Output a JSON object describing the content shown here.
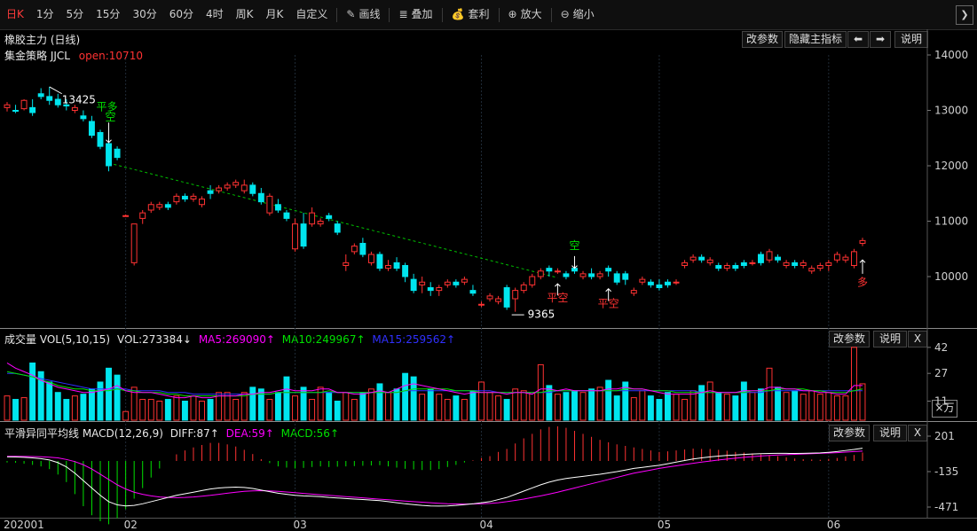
{
  "toolbar": {
    "periods": [
      "日K",
      "1分",
      "5分",
      "15分",
      "30分",
      "60分",
      "4时",
      "周K",
      "月K",
      "自定义"
    ],
    "active_period": "日K",
    "tools": [
      {
        "icon": "pencil-icon",
        "glyph": "✎",
        "label": "画线"
      },
      {
        "icon": "stack-icon",
        "glyph": "≣",
        "label": "叠加"
      },
      {
        "icon": "money-bag-icon",
        "glyph": "💰",
        "label": "套利"
      },
      {
        "icon": "zoom-in-icon",
        "glyph": "⊕",
        "label": "放大"
      },
      {
        "icon": "zoom-out-icon",
        "glyph": "⊖",
        "label": "缩小"
      }
    ],
    "collapse_glyph": "❯"
  },
  "main": {
    "title": "橡胶主力 (日线)",
    "strategy": "集金策略 JJCL",
    "open_label": "open:10710",
    "buttons": {
      "params": "改参数",
      "hide": "隐藏主指标",
      "left": "⬅",
      "right": "➡",
      "help": "说明"
    },
    "annotations": {
      "high": "13425",
      "low": "9365",
      "sig1": "平多",
      "sig2": "空",
      "sig3": "空",
      "sig4": "平空",
      "sig5": "平空",
      "sig6": "多"
    }
  },
  "volume": {
    "title": "成交量 VOL(5,10,15)",
    "vol": "VOL:273384↓",
    "ma5": "MA5:269090↑",
    "ma10": "MA10:249967↑",
    "ma15": "MA15:259562↑",
    "buttons": {
      "params": "改参数",
      "help": "说明",
      "close": "X"
    },
    "unit": "×万",
    "ticks": [
      "42",
      "27",
      "11"
    ]
  },
  "macd": {
    "title": "平滑异同平均线 MACD(12,26,9)",
    "diff": "DIFF:87↑",
    "dea": "DEA:59↑",
    "macd": "MACD:56↑",
    "buttons": {
      "params": "改参数",
      "help": "说明",
      "close": "X"
    },
    "ticks": [
      "201",
      "-135",
      "-471"
    ]
  },
  "x_axis": [
    "202001",
    "02",
    "03",
    "04",
    "05",
    "06"
  ],
  "colors": {
    "up": "#ff3232",
    "down": "#00e5ee",
    "ma5": "#ff00ff",
    "ma10": "#00e000",
    "ma15": "#3030ff",
    "diff": "#ffffff",
    "dea": "#ff00ff",
    "trend": "#00c000"
  },
  "chart_data": {
    "type": "candlestick",
    "ylim": [
      9200,
      14000
    ],
    "y_ticks": [
      14000,
      13000,
      12000,
      11000,
      10000
    ],
    "ohlc": [
      [
        13050,
        13150,
        12980,
        13100
      ],
      [
        13000,
        13100,
        12950,
        12990
      ],
      [
        13030,
        13200,
        13000,
        13180
      ],
      [
        13050,
        13200,
        12900,
        12960
      ],
      [
        13300,
        13400,
        13200,
        13250
      ],
      [
        13250,
        13425,
        13100,
        13180
      ],
      [
        13200,
        13300,
        13050,
        13100
      ],
      [
        13100,
        13200,
        13000,
        13080
      ],
      [
        13000,
        13100,
        12950,
        13050
      ],
      [
        12900,
        13000,
        12800,
        12850
      ],
      [
        12800,
        12900,
        12500,
        12550
      ],
      [
        12600,
        12650,
        12300,
        12350
      ],
      [
        12400,
        12500,
        11900,
        12000
      ],
      [
        12300,
        12350,
        12100,
        12150
      ],
      [
        11100,
        11120,
        11080,
        11100
      ],
      [
        10250,
        10950,
        10200,
        10950
      ],
      [
        11050,
        11200,
        10950,
        11150
      ],
      [
        11200,
        11350,
        11150,
        11300
      ],
      [
        11250,
        11350,
        11200,
        11300
      ],
      [
        11300,
        11350,
        11200,
        11250
      ],
      [
        11350,
        11500,
        11300,
        11450
      ],
      [
        11450,
        11500,
        11350,
        11400
      ],
      [
        11400,
        11500,
        11350,
        11450
      ],
      [
        11300,
        11450,
        11250,
        11400
      ],
      [
        11550,
        11650,
        11400,
        11500
      ],
      [
        11550,
        11650,
        11500,
        11600
      ],
      [
        11600,
        11700,
        11550,
        11650
      ],
      [
        11650,
        11750,
        11600,
        11700
      ],
      [
        11550,
        11750,
        11500,
        11650
      ],
      [
        11650,
        11700,
        11450,
        11500
      ],
      [
        11500,
        11600,
        11300,
        11350
      ],
      [
        11150,
        11500,
        11100,
        11450
      ],
      [
        11300,
        11400,
        11150,
        11200
      ],
      [
        11150,
        11200,
        11000,
        11050
      ],
      [
        10500,
        11050,
        10450,
        10950
      ],
      [
        10950,
        11150,
        10500,
        10550
      ],
      [
        10950,
        11250,
        10900,
        11150
      ],
      [
        10950,
        11050,
        10900,
        11000
      ],
      [
        11100,
        11150,
        11000,
        11050
      ],
      [
        10950,
        11000,
        10750,
        10800
      ],
      [
        10200,
        10400,
        10100,
        10250
      ],
      [
        10450,
        10600,
        10400,
        10550
      ],
      [
        10600,
        10700,
        10350,
        10400
      ],
      [
        10250,
        10450,
        10200,
        10400
      ],
      [
        10400,
        10450,
        10100,
        10150
      ],
      [
        10150,
        10300,
        10100,
        10200
      ],
      [
        10250,
        10350,
        10100,
        10150
      ],
      [
        10200,
        10250,
        9900,
        10000
      ],
      [
        9950,
        10050,
        9700,
        9750
      ],
      [
        9850,
        10000,
        9700,
        9900
      ],
      [
        9800,
        9900,
        9650,
        9750
      ],
      [
        9750,
        9850,
        9650,
        9800
      ],
      [
        9850,
        9950,
        9800,
        9900
      ],
      [
        9900,
        9950,
        9800,
        9850
      ],
      [
        9900,
        10000,
        9850,
        9950
      ],
      [
        9750,
        9850,
        9650,
        9700
      ],
      [
        9500,
        9550,
        9450,
        9500
      ],
      [
        9600,
        9700,
        9550,
        9650
      ],
      [
        9550,
        9650,
        9500,
        9600
      ],
      [
        9800,
        9850,
        9400,
        9450
      ],
      [
        9600,
        9800,
        9365,
        9750
      ],
      [
        9750,
        9900,
        9700,
        9850
      ],
      [
        9850,
        10050,
        9800,
        10000
      ],
      [
        10000,
        10150,
        9950,
        10100
      ],
      [
        10150,
        10200,
        10000,
        10100
      ],
      [
        10100,
        10150,
        10050,
        10100
      ],
      [
        10050,
        10100,
        9950,
        10000
      ],
      [
        10150,
        10200,
        10050,
        10100
      ],
      [
        10000,
        10100,
        9950,
        10050
      ],
      [
        10050,
        10150,
        9950,
        10000
      ],
      [
        10000,
        10100,
        9950,
        10050
      ],
      [
        10150,
        10200,
        10000,
        10100
      ],
      [
        10050,
        10100,
        9850,
        9900
      ],
      [
        10050,
        10100,
        9850,
        9950
      ],
      [
        9700,
        9800,
        9650,
        9750
      ],
      [
        9900,
        10000,
        9850,
        9950
      ],
      [
        9900,
        9950,
        9800,
        9850
      ],
      [
        9850,
        9950,
        9750,
        9800
      ],
      [
        9900,
        9950,
        9800,
        9850
      ],
      [
        9900,
        9950,
        9850,
        9900
      ],
      [
        10200,
        10300,
        10150,
        10250
      ],
      [
        10300,
        10400,
        10250,
        10350
      ],
      [
        10350,
        10400,
        10250,
        10300
      ],
      [
        10250,
        10350,
        10200,
        10300
      ],
      [
        10200,
        10250,
        10100,
        10150
      ],
      [
        10150,
        10250,
        10100,
        10200
      ],
      [
        10200,
        10250,
        10100,
        10150
      ],
      [
        10250,
        10300,
        10150,
        10200
      ],
      [
        10250,
        10300,
        10200,
        10250
      ],
      [
        10400,
        10450,
        10200,
        10250
      ],
      [
        10300,
        10500,
        10250,
        10450
      ],
      [
        10350,
        10400,
        10250,
        10300
      ],
      [
        10200,
        10300,
        10150,
        10250
      ],
      [
        10250,
        10300,
        10150,
        10200
      ],
      [
        10200,
        10300,
        10150,
        10250
      ],
      [
        10100,
        10200,
        10050,
        10150
      ],
      [
        10150,
        10250,
        10100,
        10200
      ],
      [
        10200,
        10300,
        10100,
        10250
      ],
      [
        10300,
        10450,
        10250,
        10400
      ],
      [
        10300,
        10400,
        10250,
        10350
      ],
      [
        10200,
        10500,
        10150,
        10450
      ],
      [
        10600,
        10700,
        10550,
        10650
      ]
    ],
    "volume": [
      14,
      12,
      13,
      33,
      28,
      22,
      16,
      12,
      14,
      15,
      18,
      22,
      30,
      26,
      5,
      19,
      12,
      12,
      11,
      12,
      14,
      11,
      14,
      11,
      12,
      16,
      16,
      12,
      16,
      19,
      18,
      12,
      16,
      25,
      14,
      19,
      12,
      19,
      16,
      11,
      16,
      12,
      16,
      18,
      21,
      16,
      18,
      27,
      25,
      15,
      18,
      15,
      12,
      14,
      12,
      17,
      22,
      16,
      14,
      12,
      18,
      17,
      16,
      32,
      20,
      15,
      16,
      17,
      16,
      18,
      19,
      23,
      14,
      22,
      13,
      17,
      14,
      12,
      16,
      15,
      12,
      17,
      20,
      22,
      16,
      15,
      14,
      22,
      16,
      18,
      30,
      19,
      16,
      17,
      15,
      17,
      15,
      16,
      14,
      14,
      42,
      21
    ],
    "ma5": [
      33,
      30,
      28,
      26,
      23,
      21,
      19,
      18,
      17,
      16,
      16,
      17,
      18,
      20,
      17,
      16,
      16,
      16,
      15,
      14,
      13,
      13,
      14,
      13,
      13,
      14,
      14,
      14,
      15,
      15,
      16,
      16,
      17,
      18,
      17,
      17,
      17,
      18,
      18,
      16,
      16,
      15,
      15,
      16,
      17,
      16,
      18,
      20,
      21,
      20,
      19,
      18,
      17,
      16,
      15,
      16,
      16,
      16,
      16,
      15,
      16,
      16,
      15,
      18,
      18,
      17,
      18,
      17,
      17,
      17,
      17,
      18,
      18,
      19,
      18,
      18,
      17,
      16,
      15,
      15,
      15,
      15,
      16,
      17,
      16,
      16,
      16,
      17,
      17,
      17,
      19,
      19,
      18,
      18,
      17,
      17,
      16,
      16,
      15,
      15,
      20,
      20
    ],
    "ma10": [
      28,
      27,
      26,
      25,
      23,
      22,
      20,
      19,
      18,
      18,
      17,
      17,
      17,
      18,
      17,
      17,
      16,
      16,
      16,
      15,
      15,
      14,
      14,
      14,
      14,
      14,
      14,
      14,
      14,
      15,
      15,
      15,
      16,
      16,
      16,
      16,
      16,
      16,
      17,
      16,
      16,
      16,
      16,
      16,
      16,
      16,
      16,
      17,
      18,
      18,
      18,
      18,
      18,
      17,
      17,
      17,
      16,
      16,
      16,
      16,
      16,
      16,
      16,
      16,
      17,
      17,
      17,
      17,
      17,
      17,
      17,
      17,
      17,
      18,
      18,
      18,
      17,
      17,
      17,
      16,
      16,
      16,
      16,
      16,
      16,
      16,
      16,
      16,
      17,
      17,
      17,
      18,
      18,
      18,
      18,
      17,
      17,
      16,
      16,
      16,
      17,
      18
    ],
    "ma15": [
      27,
      27,
      26,
      25,
      24,
      23,
      22,
      21,
      20,
      19,
      18,
      18,
      18,
      18,
      18,
      17,
      17,
      17,
      17,
      16,
      16,
      16,
      15,
      15,
      15,
      15,
      15,
      15,
      15,
      15,
      15,
      15,
      16,
      16,
      16,
      16,
      16,
      16,
      16,
      16,
      16,
      16,
      16,
      16,
      16,
      16,
      16,
      17,
      17,
      17,
      17,
      17,
      17,
      17,
      17,
      17,
      17,
      17,
      16,
      16,
      16,
      16,
      16,
      16,
      16,
      17,
      17,
      17,
      17,
      17,
      17,
      17,
      17,
      17,
      17,
      17,
      17,
      17,
      17,
      17,
      17,
      17,
      16,
      16,
      16,
      16,
      16,
      16,
      16,
      16,
      17,
      17,
      17,
      17,
      17,
      17,
      17,
      17,
      17,
      17,
      17,
      17
    ],
    "macd_diff": [
      5,
      4,
      0,
      -5,
      -12,
      -25,
      -50,
      -90,
      -150,
      -220,
      -290,
      -360,
      -420,
      -450,
      -460,
      -455,
      -440,
      -420,
      -400,
      -380,
      -360,
      -345,
      -330,
      -315,
      -300,
      -290,
      -285,
      -282,
      -285,
      -295,
      -310,
      -325,
      -340,
      -350,
      -360,
      -365,
      -368,
      -372,
      -380,
      -385,
      -390,
      -395,
      -400,
      -405,
      -410,
      -420,
      -430,
      -440,
      -448,
      -455,
      -460,
      -462,
      -460,
      -455,
      -448,
      -440,
      -430,
      -420,
      -400,
      -380,
      -350,
      -320,
      -290,
      -260,
      -235,
      -215,
      -200,
      -190,
      -180,
      -170,
      -160,
      -148,
      -135,
      -120,
      -105,
      -95,
      -85,
      -75,
      -60,
      -45,
      -30,
      -15,
      -5,
      5,
      12,
      18,
      22,
      28,
      32,
      35,
      37,
      38,
      38,
      37,
      38,
      40,
      42,
      48,
      55,
      65,
      75,
      87
    ],
    "macd_dea": [
      10,
      10,
      9,
      8,
      6,
      2,
      -5,
      -20,
      -40,
      -70,
      -110,
      -160,
      -210,
      -260,
      -300,
      -330,
      -350,
      -365,
      -375,
      -380,
      -382,
      -380,
      -375,
      -368,
      -360,
      -350,
      -340,
      -330,
      -322,
      -318,
      -316,
      -318,
      -322,
      -328,
      -335,
      -342,
      -348,
      -354,
      -360,
      -366,
      -372,
      -378,
      -384,
      -390,
      -396,
      -402,
      -408,
      -414,
      -420,
      -425,
      -430,
      -435,
      -440,
      -442,
      -443,
      -442,
      -440,
      -436,
      -430,
      -420,
      -408,
      -395,
      -380,
      -365,
      -348,
      -330,
      -310,
      -290,
      -270,
      -250,
      -230,
      -210,
      -190,
      -170,
      -150,
      -135,
      -120,
      -105,
      -92,
      -80,
      -68,
      -56,
      -45,
      -35,
      -25,
      -16,
      -8,
      0,
      7,
      13,
      18,
      22,
      26,
      29,
      32,
      35,
      38,
      41,
      45,
      50,
      55,
      59
    ],
    "macd_hist": [
      -10,
      -12,
      -18,
      -26,
      -36,
      -54,
      -90,
      -140,
      -220,
      -300,
      -360,
      -400,
      -420,
      -380,
      -320,
      -250,
      -180,
      -110,
      -50,
      0,
      44,
      70,
      90,
      106,
      120,
      120,
      110,
      96,
      74,
      46,
      12,
      -14,
      -36,
      -44,
      -50,
      -46,
      -40,
      -36,
      -40,
      -38,
      -36,
      -34,
      -32,
      -30,
      -28,
      -36,
      -44,
      -52,
      -56,
      -60,
      -60,
      -54,
      -40,
      -26,
      -10,
      4,
      20,
      32,
      60,
      80,
      116,
      150,
      180,
      210,
      226,
      230,
      220,
      200,
      180,
      160,
      140,
      124,
      110,
      100,
      90,
      80,
      70,
      60,
      64,
      70,
      76,
      82,
      80,
      80,
      74,
      68,
      60,
      56,
      50,
      44,
      38,
      32,
      24,
      16,
      12,
      10,
      8,
      14,
      20,
      30,
      40,
      56
    ]
  }
}
